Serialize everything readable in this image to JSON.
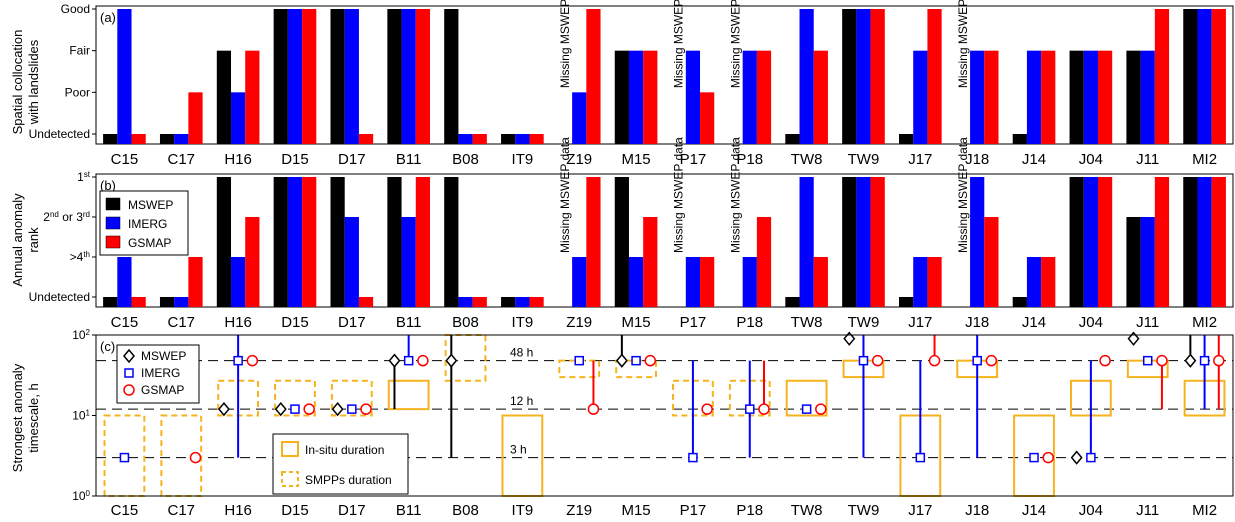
{
  "colors": {
    "MSWEP": "#000000",
    "IMERG": "#0000ff",
    "GSMAP": "#ff0000",
    "duration": "#f5b31e"
  },
  "categories": [
    "C15",
    "C17",
    "H16",
    "D15",
    "D17",
    "B11",
    "B08",
    "IT9",
    "Z19",
    "M15",
    "P17",
    "P18",
    "TW8",
    "TW9",
    "J17",
    "J18",
    "J14",
    "J04",
    "J11",
    "MI2"
  ],
  "legend_b": [
    "MSWEP",
    "IMERG",
    "GSMAP"
  ],
  "missing_label": "Missing MSWEP data",
  "panels": {
    "a": {
      "tag": "(a)",
      "ylabel": [
        "Spatial collocation",
        "with landslides"
      ],
      "yticks": [
        "Undetected",
        "Poor",
        "Fair",
        "Good"
      ]
    },
    "b": {
      "tag": "(b)",
      "ylabel": [
        "Annual anomaly",
        "rank"
      ],
      "yticks": [
        {
          "base": "Undetected",
          "sup": ""
        },
        {
          "base": ">4",
          "sup": "th"
        },
        {
          "base": "2",
          "sup": "nd",
          "mid": " or 3",
          "sup2": "rd"
        },
        {
          "base": "1",
          "sup": "st"
        }
      ]
    },
    "c": {
      "tag": "(c)",
      "ylabel": [
        "Strongest anomaly",
        "timescale, h"
      ],
      "yticks": [
        {
          "base": "10",
          "exp": "0"
        },
        {
          "base": "10",
          "exp": "1"
        },
        {
          "base": "10",
          "exp": "2"
        }
      ],
      "hlines": [
        {
          "value": 48,
          "label": "48 h"
        },
        {
          "value": 12,
          "label": "12 h"
        },
        {
          "value": 3,
          "label": "3 h"
        }
      ],
      "legend_markers": [
        "MSWEP",
        "IMERG",
        "GSMAP"
      ],
      "legend_boxes": [
        "In-situ duration",
        "SMPPs duration"
      ]
    }
  },
  "chart_data": [
    {
      "type": "bar",
      "panel": "a",
      "title": "",
      "ylabel": "Spatial collocation with landslides",
      "categories": [
        "C15",
        "C17",
        "H16",
        "D15",
        "D17",
        "B11",
        "B08",
        "IT9",
        "Z19",
        "M15",
        "P17",
        "P18",
        "TW8",
        "TW9",
        "J17",
        "J18",
        "J14",
        "J04",
        "J11",
        "MI2"
      ],
      "ylim": [
        0,
        3
      ],
      "yticks": [
        "Undetected",
        "Poor",
        "Fair",
        "Good"
      ],
      "series": [
        {
          "name": "MSWEP",
          "values": [
            0,
            0,
            2,
            3,
            3,
            3,
            3,
            0,
            null,
            2,
            null,
            null,
            0,
            3,
            0,
            null,
            0,
            2,
            2,
            3
          ]
        },
        {
          "name": "IMERG",
          "values": [
            3,
            0,
            1,
            3,
            3,
            3,
            0,
            0,
            1,
            2,
            2,
            2,
            3,
            3,
            2,
            2,
            2,
            2,
            2,
            3
          ]
        },
        {
          "name": "GSMAP",
          "values": [
            0,
            1,
            2,
            3,
            0,
            3,
            0,
            0,
            3,
            2,
            1,
            2,
            2,
            3,
            3,
            2,
            2,
            2,
            3,
            3
          ]
        }
      ]
    },
    {
      "type": "bar",
      "panel": "b",
      "title": "",
      "ylabel": "Annual anomaly rank",
      "categories": [
        "C15",
        "C17",
        "H16",
        "D15",
        "D17",
        "B11",
        "B08",
        "IT9",
        "Z19",
        "M15",
        "P17",
        "P18",
        "TW8",
        "TW9",
        "J17",
        "J18",
        "J14",
        "J04",
        "J11",
        "MI2"
      ],
      "ylim": [
        0,
        3
      ],
      "yticks": [
        "Undetected",
        ">4th",
        "2nd or 3rd",
        "1st"
      ],
      "legend": {
        "entries": [
          "MSWEP",
          "IMERG",
          "GSMAP"
        ],
        "placement": "top-left"
      },
      "series": [
        {
          "name": "MSWEP",
          "values": [
            0,
            0,
            3,
            3,
            3,
            3,
            3,
            0,
            null,
            3,
            null,
            null,
            0,
            3,
            0,
            null,
            0,
            3,
            2,
            3
          ]
        },
        {
          "name": "IMERG",
          "values": [
            1,
            0,
            1,
            3,
            2,
            2,
            0,
            0,
            1,
            1,
            1,
            1,
            3,
            3,
            1,
            3,
            1,
            3,
            2,
            3
          ]
        },
        {
          "name": "GSMAP",
          "values": [
            0,
            1,
            2,
            3,
            0,
            3,
            0,
            0,
            3,
            2,
            1,
            2,
            1,
            3,
            1,
            2,
            1,
            3,
            3,
            3
          ]
        }
      ]
    },
    {
      "type": "scatter",
      "panel": "c",
      "title": "",
      "ylabel": "Strongest anomaly timescale, h",
      "yscale": "log",
      "ylim": [
        1,
        100
      ],
      "categories": [
        "C15",
        "C17",
        "H16",
        "D15",
        "D17",
        "B11",
        "B08",
        "IT9",
        "Z19",
        "M15",
        "P17",
        "P18",
        "TW8",
        "TW9",
        "J17",
        "J18",
        "J14",
        "J04",
        "J11",
        "MI2"
      ],
      "reference_lines": [
        48,
        12,
        3
      ],
      "series": [
        {
          "name": "MSWEP",
          "marker": "diamond",
          "values": [
            null,
            null,
            12,
            12,
            12,
            48,
            48,
            null,
            null,
            48,
            null,
            null,
            null,
            90,
            null,
            null,
            null,
            3,
            90,
            48
          ],
          "whiskers": [
            null,
            null,
            null,
            null,
            null,
            [
              12,
              48
            ],
            [
              3,
              100
            ],
            null,
            null,
            [
              48,
              100
            ],
            null,
            null,
            null,
            null,
            null,
            null,
            null,
            null,
            [
              90,
              100
            ],
            [
              48,
              100
            ]
          ]
        },
        {
          "name": "IMERG",
          "marker": "square",
          "values": [
            3,
            null,
            48,
            12,
            12,
            48,
            null,
            null,
            48,
            48,
            3,
            12,
            12,
            48,
            3,
            48,
            3,
            3,
            48,
            48
          ],
          "whiskers": [
            null,
            null,
            [
              3,
              100
            ],
            null,
            null,
            [
              48,
              100
            ],
            null,
            null,
            null,
            null,
            [
              3,
              48
            ],
            [
              3,
              48
            ],
            null,
            [
              3,
              100
            ],
            [
              3,
              48
            ],
            [
              3,
              100
            ],
            null,
            [
              3,
              48
            ],
            null,
            [
              12,
              100
            ]
          ]
        },
        {
          "name": "GSMAP",
          "marker": "circle",
          "values": [
            null,
            3,
            48,
            12,
            12,
            48,
            null,
            null,
            12,
            48,
            12,
            12,
            12,
            48,
            48,
            48,
            3,
            48,
            48,
            48
          ],
          "whiskers": [
            null,
            null,
            null,
            null,
            null,
            null,
            null,
            null,
            [
              12,
              48
            ],
            null,
            null,
            [
              12,
              48
            ],
            null,
            null,
            [
              48,
              100
            ],
            null,
            null,
            null,
            [
              12,
              48
            ],
            [
              12,
              100
            ]
          ]
        }
      ],
      "insitu_duration": [
        null,
        null,
        null,
        null,
        null,
        [
          12,
          27
        ],
        null,
        [
          1,
          10
        ],
        null,
        null,
        null,
        null,
        [
          10,
          27
        ],
        [
          30,
          48
        ],
        [
          1,
          10
        ],
        [
          30,
          48
        ],
        [
          1,
          10
        ],
        [
          10,
          27
        ],
        [
          30,
          48
        ],
        [
          10,
          27
        ]
      ],
      "smpp_duration": [
        [
          1,
          10
        ],
        [
          1,
          10
        ],
        [
          10,
          27
        ],
        [
          10,
          27
        ],
        [
          10,
          27
        ],
        null,
        [
          27,
          100
        ],
        null,
        [
          30,
          48
        ],
        [
          30,
          48
        ],
        [
          10,
          27
        ],
        [
          10,
          27
        ],
        null,
        null,
        null,
        null,
        null,
        null,
        null,
        null
      ]
    }
  ]
}
